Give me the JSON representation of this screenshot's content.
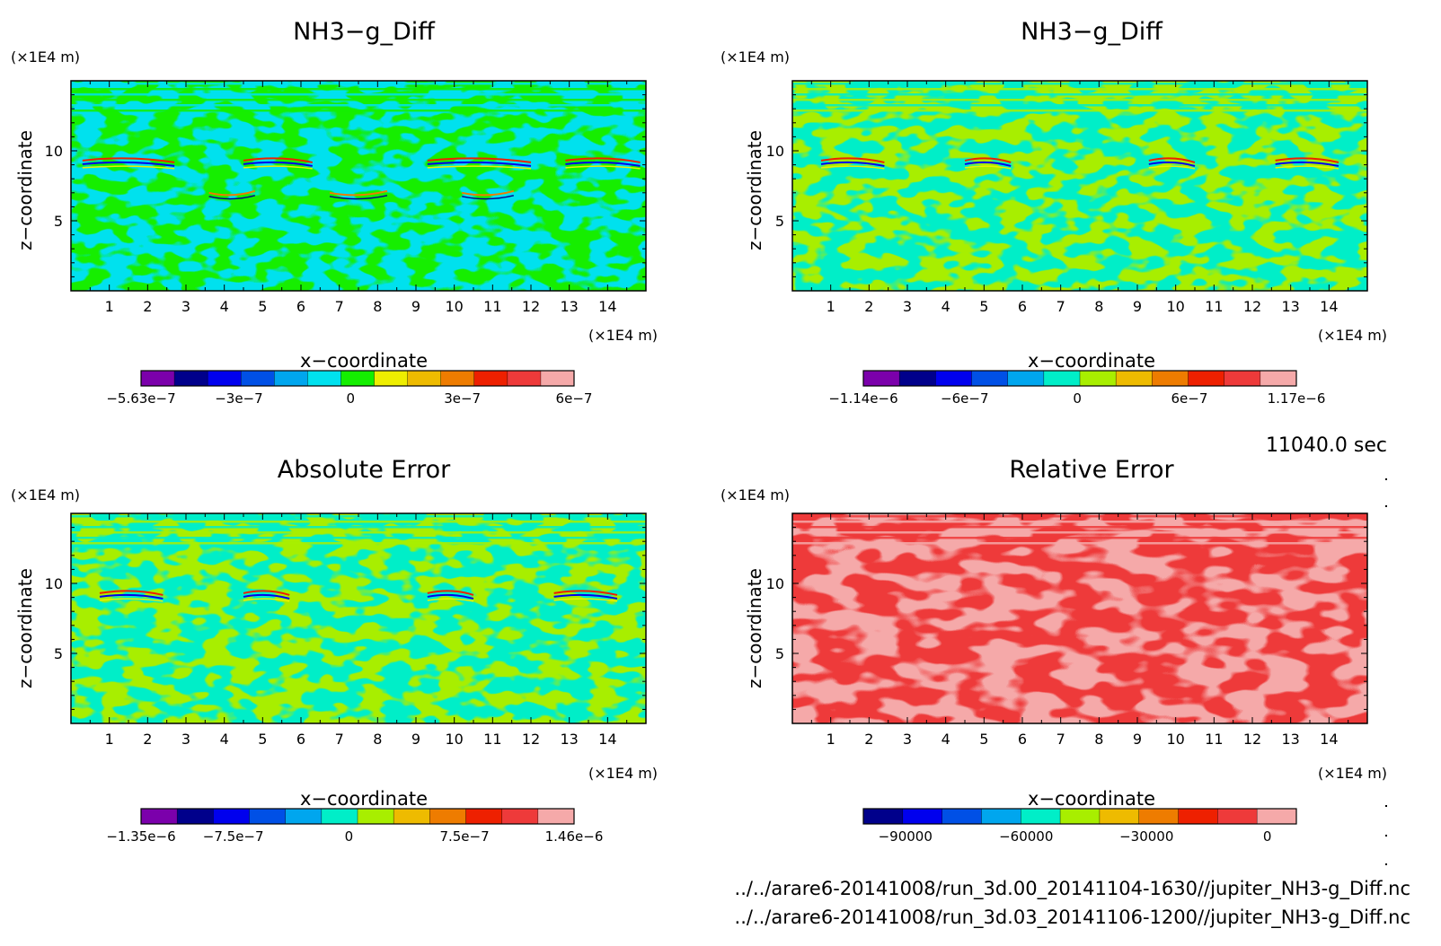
{
  "figure": {
    "time_label": "11040.0 sec",
    "files": [
      "../../arare6-20141008/run_3d.00_20141104-1630//jupiter_NH3-g_Diff.nc",
      "../../arare6-20141008/run_3d.03_20141106-1200//jupiter_NH3-g_Diff.nc"
    ]
  },
  "colors": {
    "violet": "#7b00ab",
    "navy": "#00008b",
    "blue": "#0000ee",
    "royal": "#0050e6",
    "sky": "#00a6ee",
    "cyan": "#00e1ee",
    "aqua": "#00eec8",
    "green": "#14ee00",
    "lime": "#a8ee00",
    "yellow": "#eeee00",
    "amber": "#eebb00",
    "orange": "#ee7c00",
    "red": "#ee2000",
    "crimson": "#ee3a3a",
    "pink": "#f5a9a9"
  },
  "chart_data": [
    {
      "type": "heatmap",
      "title": "NH3−g_Diff",
      "xlabel": "x−coordinate",
      "ylabel": "z−coordinate",
      "x_unit": "(×1E4 m)",
      "y_unit": "(×1E4 m)",
      "xlim": [
        0,
        15
      ],
      "ylim": [
        0,
        15
      ],
      "x_ticks": [
        1,
        2,
        3,
        4,
        5,
        6,
        7,
        8,
        9,
        10,
        11,
        12,
        13,
        14
      ],
      "y_ticks": [
        5,
        10
      ],
      "dominant_colors": [
        "green",
        "cyan"
      ],
      "colorbar": {
        "colors": [
          "violet",
          "navy",
          "blue",
          "royal",
          "sky",
          "cyan",
          "green",
          "yellow",
          "amber",
          "orange",
          "red",
          "crimson",
          "pink"
        ],
        "tick_labels": [
          "−5.63e−7",
          "−3e−7",
          "0",
          "3e−7",
          "6e−7"
        ],
        "tick_positions": [
          0,
          0.226,
          0.484,
          0.742,
          1.0
        ]
      }
    },
    {
      "type": "heatmap",
      "title": "NH3−g_Diff",
      "xlabel": "x−coordinate",
      "ylabel": "z−coordinate",
      "x_unit": "(×1E4 m)",
      "y_unit": "(×1E4 m)",
      "xlim": [
        0,
        15
      ],
      "ylim": [
        0,
        15
      ],
      "x_ticks": [
        1,
        2,
        3,
        4,
        5,
        6,
        7,
        8,
        9,
        10,
        11,
        12,
        13,
        14
      ],
      "y_ticks": [
        5,
        10
      ],
      "dominant_colors": [
        "lime",
        "aqua"
      ],
      "colorbar": {
        "colors": [
          "violet",
          "navy",
          "blue",
          "royal",
          "sky",
          "aqua",
          "lime",
          "amber",
          "orange",
          "red",
          "crimson",
          "pink"
        ],
        "tick_labels": [
          "−1.14e−6",
          "−6e−7",
          "0",
          "6e−7",
          "1.17e−6"
        ],
        "tick_positions": [
          0,
          0.234,
          0.494,
          0.753,
          1.0
        ]
      }
    },
    {
      "type": "heatmap",
      "title": "Absolute Error",
      "xlabel": "x−coordinate",
      "ylabel": "z−coordinate",
      "x_unit": "(×1E4 m)",
      "y_unit": "(×1E4 m)",
      "xlim": [
        0,
        15
      ],
      "ylim": [
        0,
        15
      ],
      "x_ticks": [
        1,
        2,
        3,
        4,
        5,
        6,
        7,
        8,
        9,
        10,
        11,
        12,
        13,
        14
      ],
      "y_ticks": [
        5,
        10
      ],
      "dominant_colors": [
        "lime",
        "aqua"
      ],
      "colorbar": {
        "colors": [
          "violet",
          "navy",
          "blue",
          "royal",
          "sky",
          "aqua",
          "lime",
          "amber",
          "orange",
          "red",
          "crimson",
          "pink"
        ],
        "tick_labels": [
          "−1.35e−6",
          "−7.5e−7",
          "0",
          "7.5e−7",
          "1.46e−6"
        ],
        "tick_positions": [
          0,
          0.213,
          0.48,
          0.747,
          1.0
        ]
      }
    },
    {
      "type": "heatmap",
      "title": "Relative Error",
      "xlabel": "x−coordinate",
      "ylabel": "z−coordinate",
      "x_unit": "(×1E4 m)",
      "y_unit": "(×1E4 m)",
      "xlim": [
        0,
        15
      ],
      "ylim": [
        0,
        15
      ],
      "x_ticks": [
        1,
        2,
        3,
        4,
        5,
        6,
        7,
        8,
        9,
        10,
        11,
        12,
        13,
        14
      ],
      "y_ticks": [
        5,
        10
      ],
      "dominant_colors": [
        "pink",
        "crimson"
      ],
      "colorbar": {
        "colors": [
          "navy",
          "blue",
          "royal",
          "sky",
          "aqua",
          "lime",
          "amber",
          "orange",
          "red",
          "crimson",
          "pink"
        ],
        "tick_labels": [
          "−90000",
          "−60000",
          "−30000",
          "0"
        ],
        "tick_positions": [
          0.097,
          0.376,
          0.654,
          0.933
        ]
      }
    }
  ]
}
